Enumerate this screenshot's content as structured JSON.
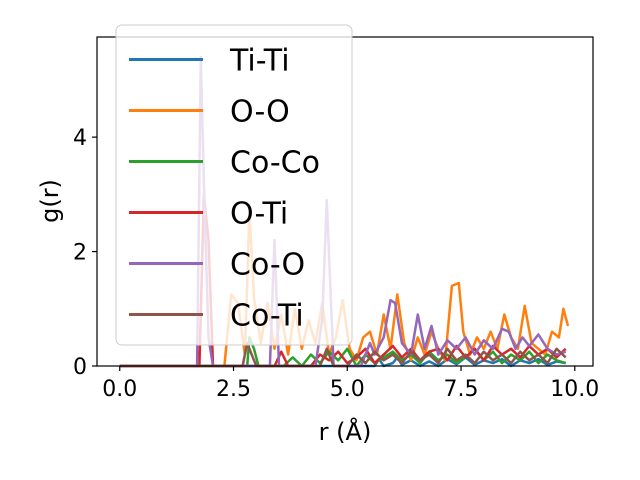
{
  "chart_data": {
    "type": "line",
    "title": "",
    "xlabel": "r (Å)",
    "ylabel": "g(r)",
    "xlim": [
      -0.5,
      10.4
    ],
    "ylim": [
      0,
      5.75
    ],
    "xticks": [
      0.0,
      2.5,
      5.0,
      7.5,
      10.0
    ],
    "xtick_labels": [
      "0.0",
      "2.5",
      "5.0",
      "7.5",
      "10.0"
    ],
    "yticks": [
      0,
      2,
      4
    ],
    "ytick_labels": [
      "0",
      "2",
      "4"
    ],
    "legend_position": "upper-left",
    "grid": false,
    "series": [
      {
        "name": "Ti-Ti",
        "color": "#1f77b4",
        "x": [
          0,
          5.6,
          5.7,
          5.8,
          6.0,
          6.1,
          6.2,
          6.4,
          6.6,
          6.8,
          7.0,
          7.2,
          7.4,
          7.6,
          7.8,
          8.0,
          8.2,
          8.4,
          8.6,
          8.8,
          9.0,
          9.2,
          9.4,
          9.6,
          9.8
        ],
        "y": [
          0,
          0,
          0.12,
          0,
          0.05,
          0.15,
          0.02,
          0.1,
          0.0,
          0.08,
          0.0,
          0.12,
          0.03,
          0.15,
          0.02,
          0.1,
          0.05,
          0.12,
          0.0,
          0.1,
          0.05,
          0.12,
          0.02,
          0.08,
          0.05
        ]
      },
      {
        "name": "O-O",
        "color": "#ff7f0e",
        "x": [
          0,
          2.3,
          2.45,
          2.6,
          2.75,
          2.85,
          2.95,
          3.1,
          3.25,
          3.4,
          3.55,
          3.7,
          3.85,
          4.0,
          4.15,
          4.3,
          4.45,
          4.6,
          4.75,
          4.9,
          5.05,
          5.2,
          5.35,
          5.5,
          5.65,
          5.8,
          5.95,
          6.1,
          6.25,
          6.4,
          6.55,
          6.7,
          6.85,
          7.0,
          7.15,
          7.3,
          7.45,
          7.55,
          7.7,
          7.85,
          8.0,
          8.15,
          8.3,
          8.45,
          8.6,
          8.75,
          8.9,
          9.05,
          9.2,
          9.35,
          9.5,
          9.65,
          9.75,
          9.85
        ],
        "y": [
          0,
          0,
          1.25,
          1.1,
          0.2,
          2.7,
          1.2,
          0.4,
          1.1,
          0.3,
          0.9,
          0.2,
          1.0,
          0.3,
          0.8,
          0.4,
          1.1,
          0.2,
          0.5,
          1.15,
          0.3,
          0.1,
          0.5,
          0.6,
          0.2,
          0.9,
          0.3,
          1.25,
          0.4,
          0.1,
          0.5,
          0.2,
          0.6,
          0.3,
          0.1,
          1.4,
          1.45,
          0.6,
          0.2,
          0.5,
          0.3,
          0.6,
          0.3,
          0.9,
          0.5,
          0.3,
          1.05,
          0.4,
          0.3,
          0.2,
          0.6,
          0.5,
          1.0,
          0.7
        ]
      },
      {
        "name": "Co-Co",
        "color": "#2ca02c",
        "x": [
          0,
          2.8,
          2.85,
          2.95,
          3.05,
          3.6,
          3.8,
          4.0,
          4.2,
          4.4,
          4.6,
          4.8,
          5.0,
          5.2,
          5.4,
          5.6,
          5.8,
          6.0,
          6.2,
          6.4,
          6.6,
          6.8,
          7.0,
          7.2,
          7.4,
          7.6,
          7.8,
          8.0,
          8.2,
          8.4,
          8.6,
          8.8,
          9.0,
          9.2,
          9.4,
          9.6,
          9.8
        ],
        "y": [
          0,
          0,
          0.5,
          0.3,
          0,
          0,
          0.15,
          0,
          0.2,
          0.05,
          0.25,
          0.1,
          0.3,
          0.0,
          0.2,
          0.05,
          0.15,
          0.25,
          0.1,
          0.2,
          0.05,
          0.25,
          0.1,
          0.2,
          0.05,
          0.15,
          0.3,
          0.1,
          0.25,
          0.05,
          0.2,
          0.1,
          0.25,
          0.05,
          0.2,
          0.1,
          0.05
        ]
      },
      {
        "name": "O-Ti",
        "color": "#d62728",
        "x": [
          0,
          1.75,
          1.85,
          1.95,
          2.05,
          3.4,
          3.55,
          3.7,
          4.2,
          4.4,
          4.6,
          4.8,
          5.0,
          5.2,
          5.4,
          5.6,
          5.8,
          6.0,
          6.2,
          6.4,
          6.6,
          6.8,
          7.0,
          7.2,
          7.4,
          7.6,
          7.8,
          8.0,
          8.2,
          8.4,
          8.6,
          8.8,
          9.0,
          9.2,
          9.4,
          9.6,
          9.8
        ],
        "y": [
          0,
          0,
          3.0,
          2.2,
          0,
          0,
          0.25,
          0,
          0,
          0.2,
          0.1,
          0.25,
          0.05,
          0.15,
          0.3,
          0.05,
          0.2,
          0.35,
          0.15,
          0.3,
          0.1,
          0.25,
          0.3,
          0.1,
          0.35,
          0.15,
          0.3,
          0.1,
          0.35,
          0.2,
          0.3,
          0.15,
          0.35,
          0.2,
          0.3,
          0.15,
          0.3
        ]
      },
      {
        "name": "Co-O",
        "color": "#9467bd",
        "x": [
          0,
          1.7,
          1.78,
          1.85,
          1.95,
          2.05,
          3.3,
          3.4,
          3.5,
          4.3,
          4.45,
          4.55,
          4.7,
          5.3,
          5.5,
          5.6,
          5.8,
          5.95,
          6.05,
          6.2,
          6.4,
          6.55,
          6.7,
          6.85,
          7.0,
          7.2,
          7.4,
          7.6,
          7.8,
          8.0,
          8.2,
          8.4,
          8.55,
          8.7,
          8.85,
          9.0,
          9.2,
          9.4,
          9.6,
          9.8
        ],
        "y": [
          0,
          0,
          5.4,
          3.2,
          0.5,
          0,
          0,
          2.2,
          0,
          0,
          0.8,
          2.9,
          0,
          0,
          0.4,
          0.2,
          0.5,
          1.15,
          1.1,
          0.4,
          0.2,
          0.9,
          0.3,
          0.7,
          0.2,
          0.45,
          0.3,
          0.5,
          0.2,
          0.45,
          0.3,
          0.65,
          0.6,
          0.3,
          0.5,
          0.35,
          0.55,
          0.3,
          0.2,
          0.25
        ]
      },
      {
        "name": "Co-Ti",
        "color": "#8c564b",
        "x": [
          0,
          2.7,
          2.8,
          2.9,
          3.0,
          4.4,
          4.55,
          4.7,
          5.0,
          5.2,
          5.4,
          5.6,
          5.8,
          6.0,
          6.2,
          6.4,
          6.6,
          6.8,
          7.0,
          7.2,
          7.4,
          7.6,
          7.8,
          8.0,
          8.2,
          8.4,
          8.6,
          8.8,
          9.0,
          9.2,
          9.4,
          9.6,
          9.8
        ],
        "y": [
          0,
          0,
          0.4,
          0.2,
          0,
          0,
          0.3,
          0,
          0,
          0.2,
          0.05,
          0.25,
          0.1,
          0.2,
          0.05,
          0.25,
          0.1,
          0.2,
          0.05,
          0.3,
          0.1,
          0.2,
          0.05,
          0.25,
          0.1,
          0.2,
          0.05,
          0.25,
          0.1,
          0.2,
          0.05,
          0.3,
          0.15
        ]
      }
    ]
  }
}
